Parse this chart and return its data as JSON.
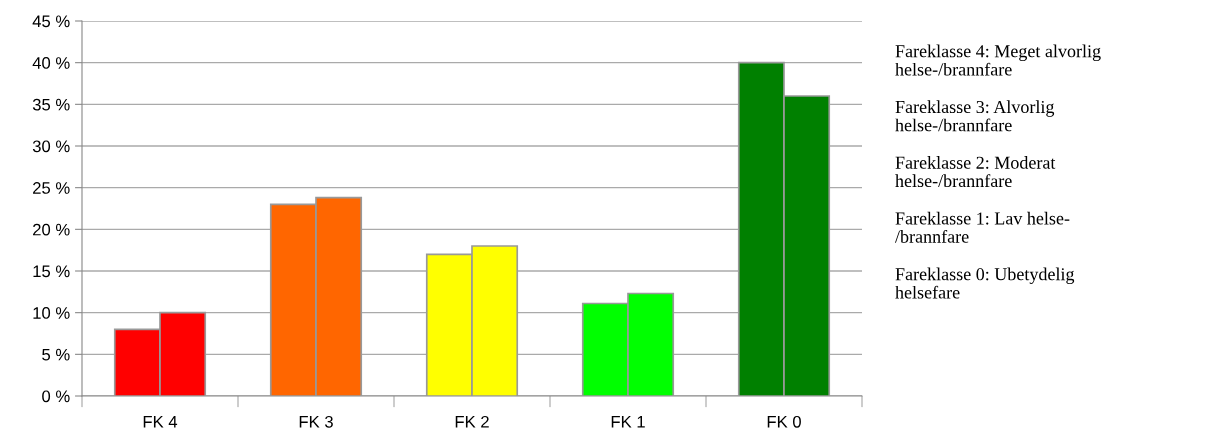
{
  "chart_data": {
    "type": "bar",
    "categories": [
      "FK 4",
      "FK 3",
      "FK 2",
      "FK 1",
      "FK 0"
    ],
    "series": [
      {
        "colors": [
          "#ff0000",
          "#ff6600",
          "#ffff00",
          "#00ff00",
          "#008000"
        ],
        "values": [
          8,
          23,
          17,
          11.1,
          40
        ]
      },
      {
        "colors": [
          "#ff0000",
          "#ff6600",
          "#ffff00",
          "#00ff00",
          "#008000"
        ],
        "values": [
          10,
          23.8,
          18,
          12.3,
          36
        ]
      }
    ],
    "ylim": [
      0,
      45
    ],
    "yticks": [
      {
        "value": 0,
        "label": "0 %"
      },
      {
        "value": 5,
        "label": "5 %"
      },
      {
        "value": 10,
        "label": "10 %"
      },
      {
        "value": 15,
        "label": "15 %"
      },
      {
        "value": 20,
        "label": "20 %"
      },
      {
        "value": 25,
        "label": "25 %"
      },
      {
        "value": 30,
        "label": "30 %"
      },
      {
        "value": 35,
        "label": "35 %"
      },
      {
        "value": 40,
        "label": "40 %"
      },
      {
        "value": 45,
        "label": "45 %"
      }
    ],
    "grid": "y",
    "legend": false,
    "annotations": [
      "Fareklasse 4: Meget alvorlig\nhelse-/brannfare",
      "Fareklasse 3: Alvorlig\nhelse-/brannfare",
      "Fareklasse 2: Moderat\nhelse-/brannfare",
      "Fareklasse 1: Lav helse-\n/brannfare",
      "Fareklasse 0: Ubetydelig\nhelsefare"
    ]
  }
}
